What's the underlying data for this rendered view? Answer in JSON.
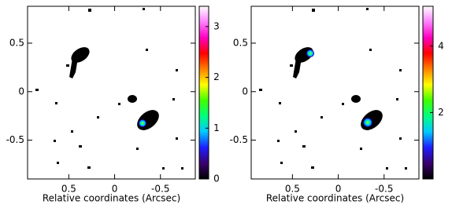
{
  "chart_data": [
    {
      "type": "image",
      "xlabel": "Relative coordinates (Arcsec)",
      "xlim": [
        0.95,
        -0.88
      ],
      "xticks": [
        0.5,
        0,
        -0.5
      ],
      "ylim": [
        -0.9,
        0.88
      ],
      "yticks": [
        0.5,
        0,
        -0.5
      ],
      "colorbar": {
        "lim": [
          0,
          3.4
        ],
        "ticks": [
          0,
          1,
          2,
          3
        ]
      },
      "colormap": [
        "#000000",
        "#3a006e",
        "#1e1eff",
        "#00c8ff",
        "#00ff80",
        "#40ff00",
        "#ffff00",
        "#ff8000",
        "#ff0000",
        "#ff00c0",
        "#ff80ff",
        "#ffffff"
      ]
    },
    {
      "type": "image",
      "xlabel": "Relative coordinates (Arcsec)",
      "xlim": [
        0.95,
        -0.88
      ],
      "xticks": [
        0.5,
        0,
        -0.5
      ],
      "ylim": [
        -0.9,
        0.88
      ],
      "yticks": [
        0.5,
        0,
        -0.5
      ],
      "colorbar": {
        "lim": [
          0,
          5.2
        ],
        "ticks": [
          2,
          4
        ]
      },
      "colormap": [
        "#000000",
        "#3a006e",
        "#1e1eff",
        "#00c8ff",
        "#00ff80",
        "#40ff00",
        "#ffff00",
        "#ff8000",
        "#ff0000",
        "#ff00c0",
        "#ff80ff",
        "#ffffff"
      ]
    }
  ]
}
